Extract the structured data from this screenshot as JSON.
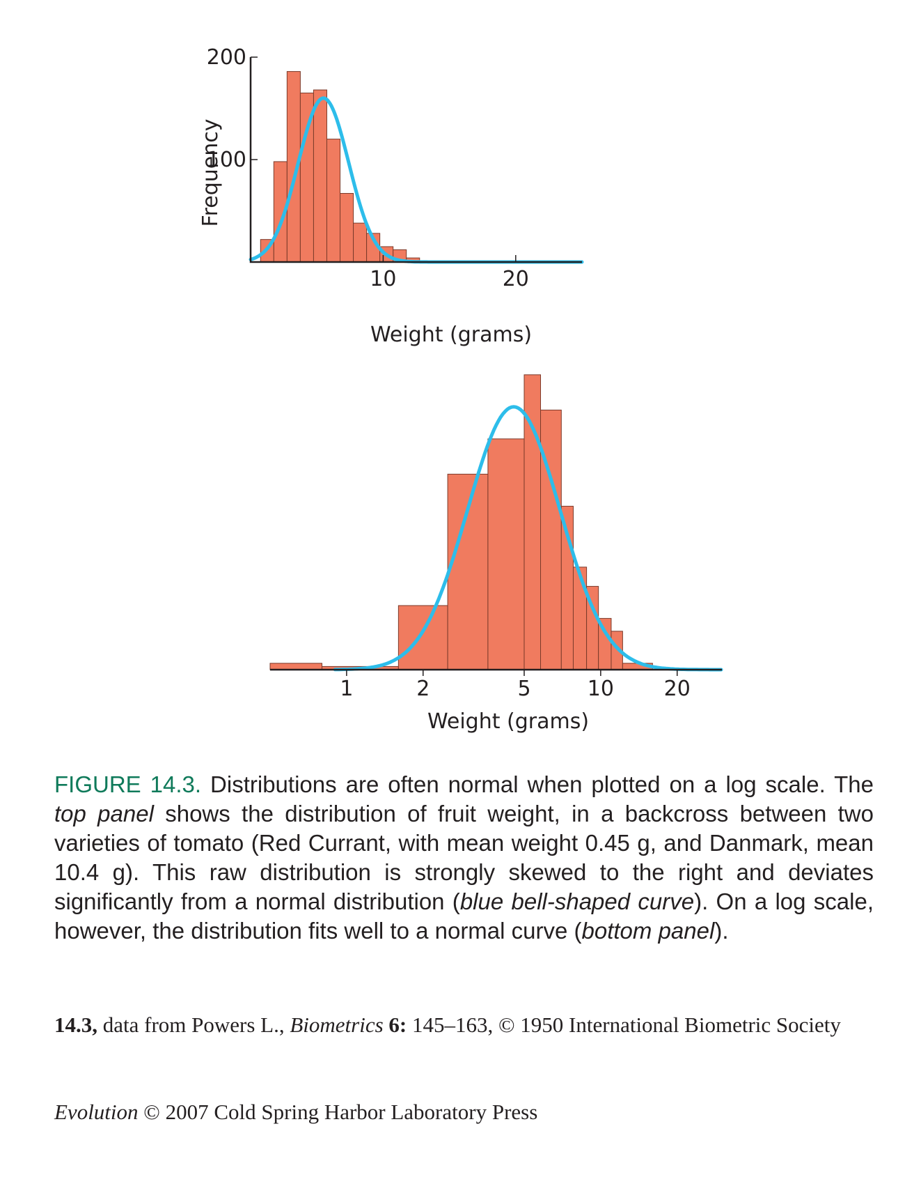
{
  "chart_data": [
    {
      "type": "bar",
      "panel": "top",
      "xlabel": "Weight (grams)",
      "ylabel": "Frequency",
      "xlim": [
        0,
        25
      ],
      "ylim": [
        0,
        200
      ],
      "x_ticks": [
        10,
        20
      ],
      "y_ticks": [
        100,
        200
      ],
      "bins": [
        {
          "x0": 0.75,
          "x1": 1.75,
          "value": 22
        },
        {
          "x0": 1.75,
          "x2": 0,
          "x1": 2.75,
          "value": 98
        },
        {
          "x0": 2.75,
          "x1": 3.75,
          "value": 186
        },
        {
          "x0": 3.75,
          "x1": 4.75,
          "value": 165
        },
        {
          "x0": 4.75,
          "x1": 5.75,
          "value": 168
        },
        {
          "x0": 5.75,
          "x1": 6.75,
          "value": 120
        },
        {
          "x0": 6.75,
          "x1": 7.75,
          "value": 67
        },
        {
          "x0": 7.75,
          "x1": 8.75,
          "value": 38
        },
        {
          "x0": 8.75,
          "x1": 9.75,
          "value": 28
        },
        {
          "x0": 9.75,
          "x1": 10.75,
          "value": 15
        },
        {
          "x0": 10.75,
          "x1": 11.75,
          "value": 12
        },
        {
          "x0": 11.75,
          "x1": 12.75,
          "value": 4
        }
      ],
      "curve": {
        "mean": 5.5,
        "sd": 1.9,
        "peak": 160
      }
    },
    {
      "type": "bar",
      "panel": "bottom",
      "xlabel": "Weight (grams)",
      "x_scale": "log",
      "xlim": [
        0.5,
        30
      ],
      "x_ticks": [
        1,
        2,
        5,
        10,
        20
      ],
      "bins": [
        {
          "x0": 0.5,
          "x1": 0.8,
          "value": 2
        },
        {
          "x0": 0.8,
          "x1": 1.6,
          "value": 1
        },
        {
          "x0": 1.6,
          "x1": 2.5,
          "value": 20
        },
        {
          "x0": 2.5,
          "x1": 3.6,
          "value": 61
        },
        {
          "x0": 3.6,
          "x1": 5.0,
          "value": 72
        },
        {
          "x0": 5.0,
          "x1": 5.8,
          "value": 92
        },
        {
          "x0": 5.8,
          "x1": 7.0,
          "value": 81
        },
        {
          "x0": 7.0,
          "x1": 7.8,
          "value": 51
        },
        {
          "x0": 7.8,
          "x1": 8.8,
          "value": 32
        },
        {
          "x0": 8.8,
          "x1": 9.8,
          "value": 26
        },
        {
          "x0": 9.8,
          "x1": 11.0,
          "value": 16
        },
        {
          "x0": 11.0,
          "x1": 12.2,
          "value": 12
        },
        {
          "x0": 12.2,
          "x1": 16.0,
          "value": 2
        }
      ],
      "curve": {
        "log_mean": 4.55,
        "log_sd": 0.42,
        "peak": 82
      }
    }
  ],
  "caption": {
    "label": "FIGURE 14.3.",
    "t1": " Distributions are often normal when plotted on a log scale. The ",
    "i1": "top panel",
    "t2": " shows the distribution of fruit weight, in a backcross between two varieties of tomato (Red Currant, with mean weight 0.45 g, and Danmark, mean 10.4 g). This raw distribution is strongly skewed to the right and deviates significantly from a normal distribution (",
    "i2": "blue bell-shaped curve",
    "t3": "). On a log scale, however, the distribution fits well to a normal curve (",
    "i3": "bottom panel",
    "t4": ")."
  },
  "source": {
    "b1": "14.3,",
    "t1": " data from Powers L., ",
    "i1": "Biometrics",
    "t2": " ",
    "b2": "6:",
    "t3": " 145–163, © 1950 International Biometric Society"
  },
  "credit": {
    "i1": "Evolution",
    "t1": " © 2007 Cold Spring Harbor Laboratory Press"
  },
  "colors": {
    "bar": "#f07b5f",
    "curve": "#2dbdea",
    "figure_label": "#0f7a5a"
  }
}
